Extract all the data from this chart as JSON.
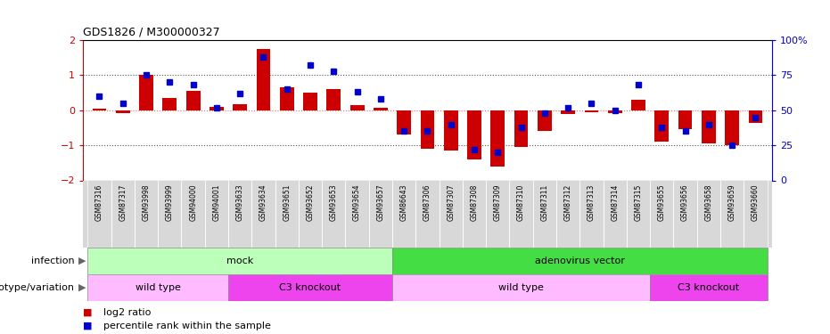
{
  "title": "GDS1826 / M300000327",
  "samples": [
    "GSM87316",
    "GSM87317",
    "GSM93998",
    "GSM93999",
    "GSM94000",
    "GSM94001",
    "GSM93633",
    "GSM93634",
    "GSM93651",
    "GSM93652",
    "GSM93653",
    "GSM93654",
    "GSM93657",
    "GSM86643",
    "GSM87306",
    "GSM87307",
    "GSM87308",
    "GSM87309",
    "GSM87310",
    "GSM87311",
    "GSM87312",
    "GSM87313",
    "GSM87314",
    "GSM87315",
    "GSM93655",
    "GSM93656",
    "GSM93658",
    "GSM93659",
    "GSM93660"
  ],
  "log2_ratio": [
    0.05,
    -0.08,
    1.0,
    0.35,
    0.55,
    0.1,
    0.18,
    1.75,
    0.65,
    0.5,
    0.6,
    0.15,
    0.08,
    -0.7,
    -1.1,
    -1.15,
    -1.4,
    -1.6,
    -1.05,
    -0.6,
    -0.12,
    -0.05,
    -0.08,
    0.3,
    -0.9,
    -0.55,
    -0.95,
    -1.0,
    -0.35
  ],
  "percentile_rank": [
    0.6,
    0.55,
    0.75,
    0.7,
    0.68,
    0.52,
    0.62,
    0.88,
    0.65,
    0.82,
    0.78,
    0.63,
    0.58,
    0.35,
    0.35,
    0.4,
    0.22,
    0.2,
    0.38,
    0.48,
    0.52,
    0.55,
    0.5,
    0.68,
    0.38,
    0.35,
    0.4,
    0.25,
    0.45
  ],
  "bar_color": "#cc0000",
  "dot_color": "#0000cc",
  "ylim": [
    -2,
    2
  ],
  "yticks_left": [
    -2,
    -1,
    0,
    1,
    2
  ],
  "ytick_left_color": "#cc0000",
  "yticks_right": [
    0,
    25,
    50,
    75,
    100
  ],
  "ytick_right_color": "#0000cc",
  "hline_zero_color": "#ff6666",
  "hline_dotted_color": "#555555",
  "infection_row": {
    "groups": [
      {
        "label": "mock",
        "start": 0,
        "end": 12,
        "color": "#bbffbb"
      },
      {
        "label": "adenovirus vector",
        "start": 13,
        "end": 28,
        "color": "#44dd44"
      }
    ]
  },
  "genotype_row": {
    "groups": [
      {
        "label": "wild type",
        "start": 0,
        "end": 5,
        "color": "#ffbbff"
      },
      {
        "label": "C3 knockout",
        "start": 6,
        "end": 12,
        "color": "#ee44ee"
      },
      {
        "label": "wild type",
        "start": 13,
        "end": 23,
        "color": "#ffbbff"
      },
      {
        "label": "C3 knockout",
        "start": 24,
        "end": 28,
        "color": "#ee44ee"
      }
    ]
  },
  "legend_items": [
    {
      "label": "log2 ratio",
      "color": "#cc0000"
    },
    {
      "label": "percentile rank within the sample",
      "color": "#0000cc"
    }
  ],
  "bar_width": 0.6,
  "dot_size": 4
}
